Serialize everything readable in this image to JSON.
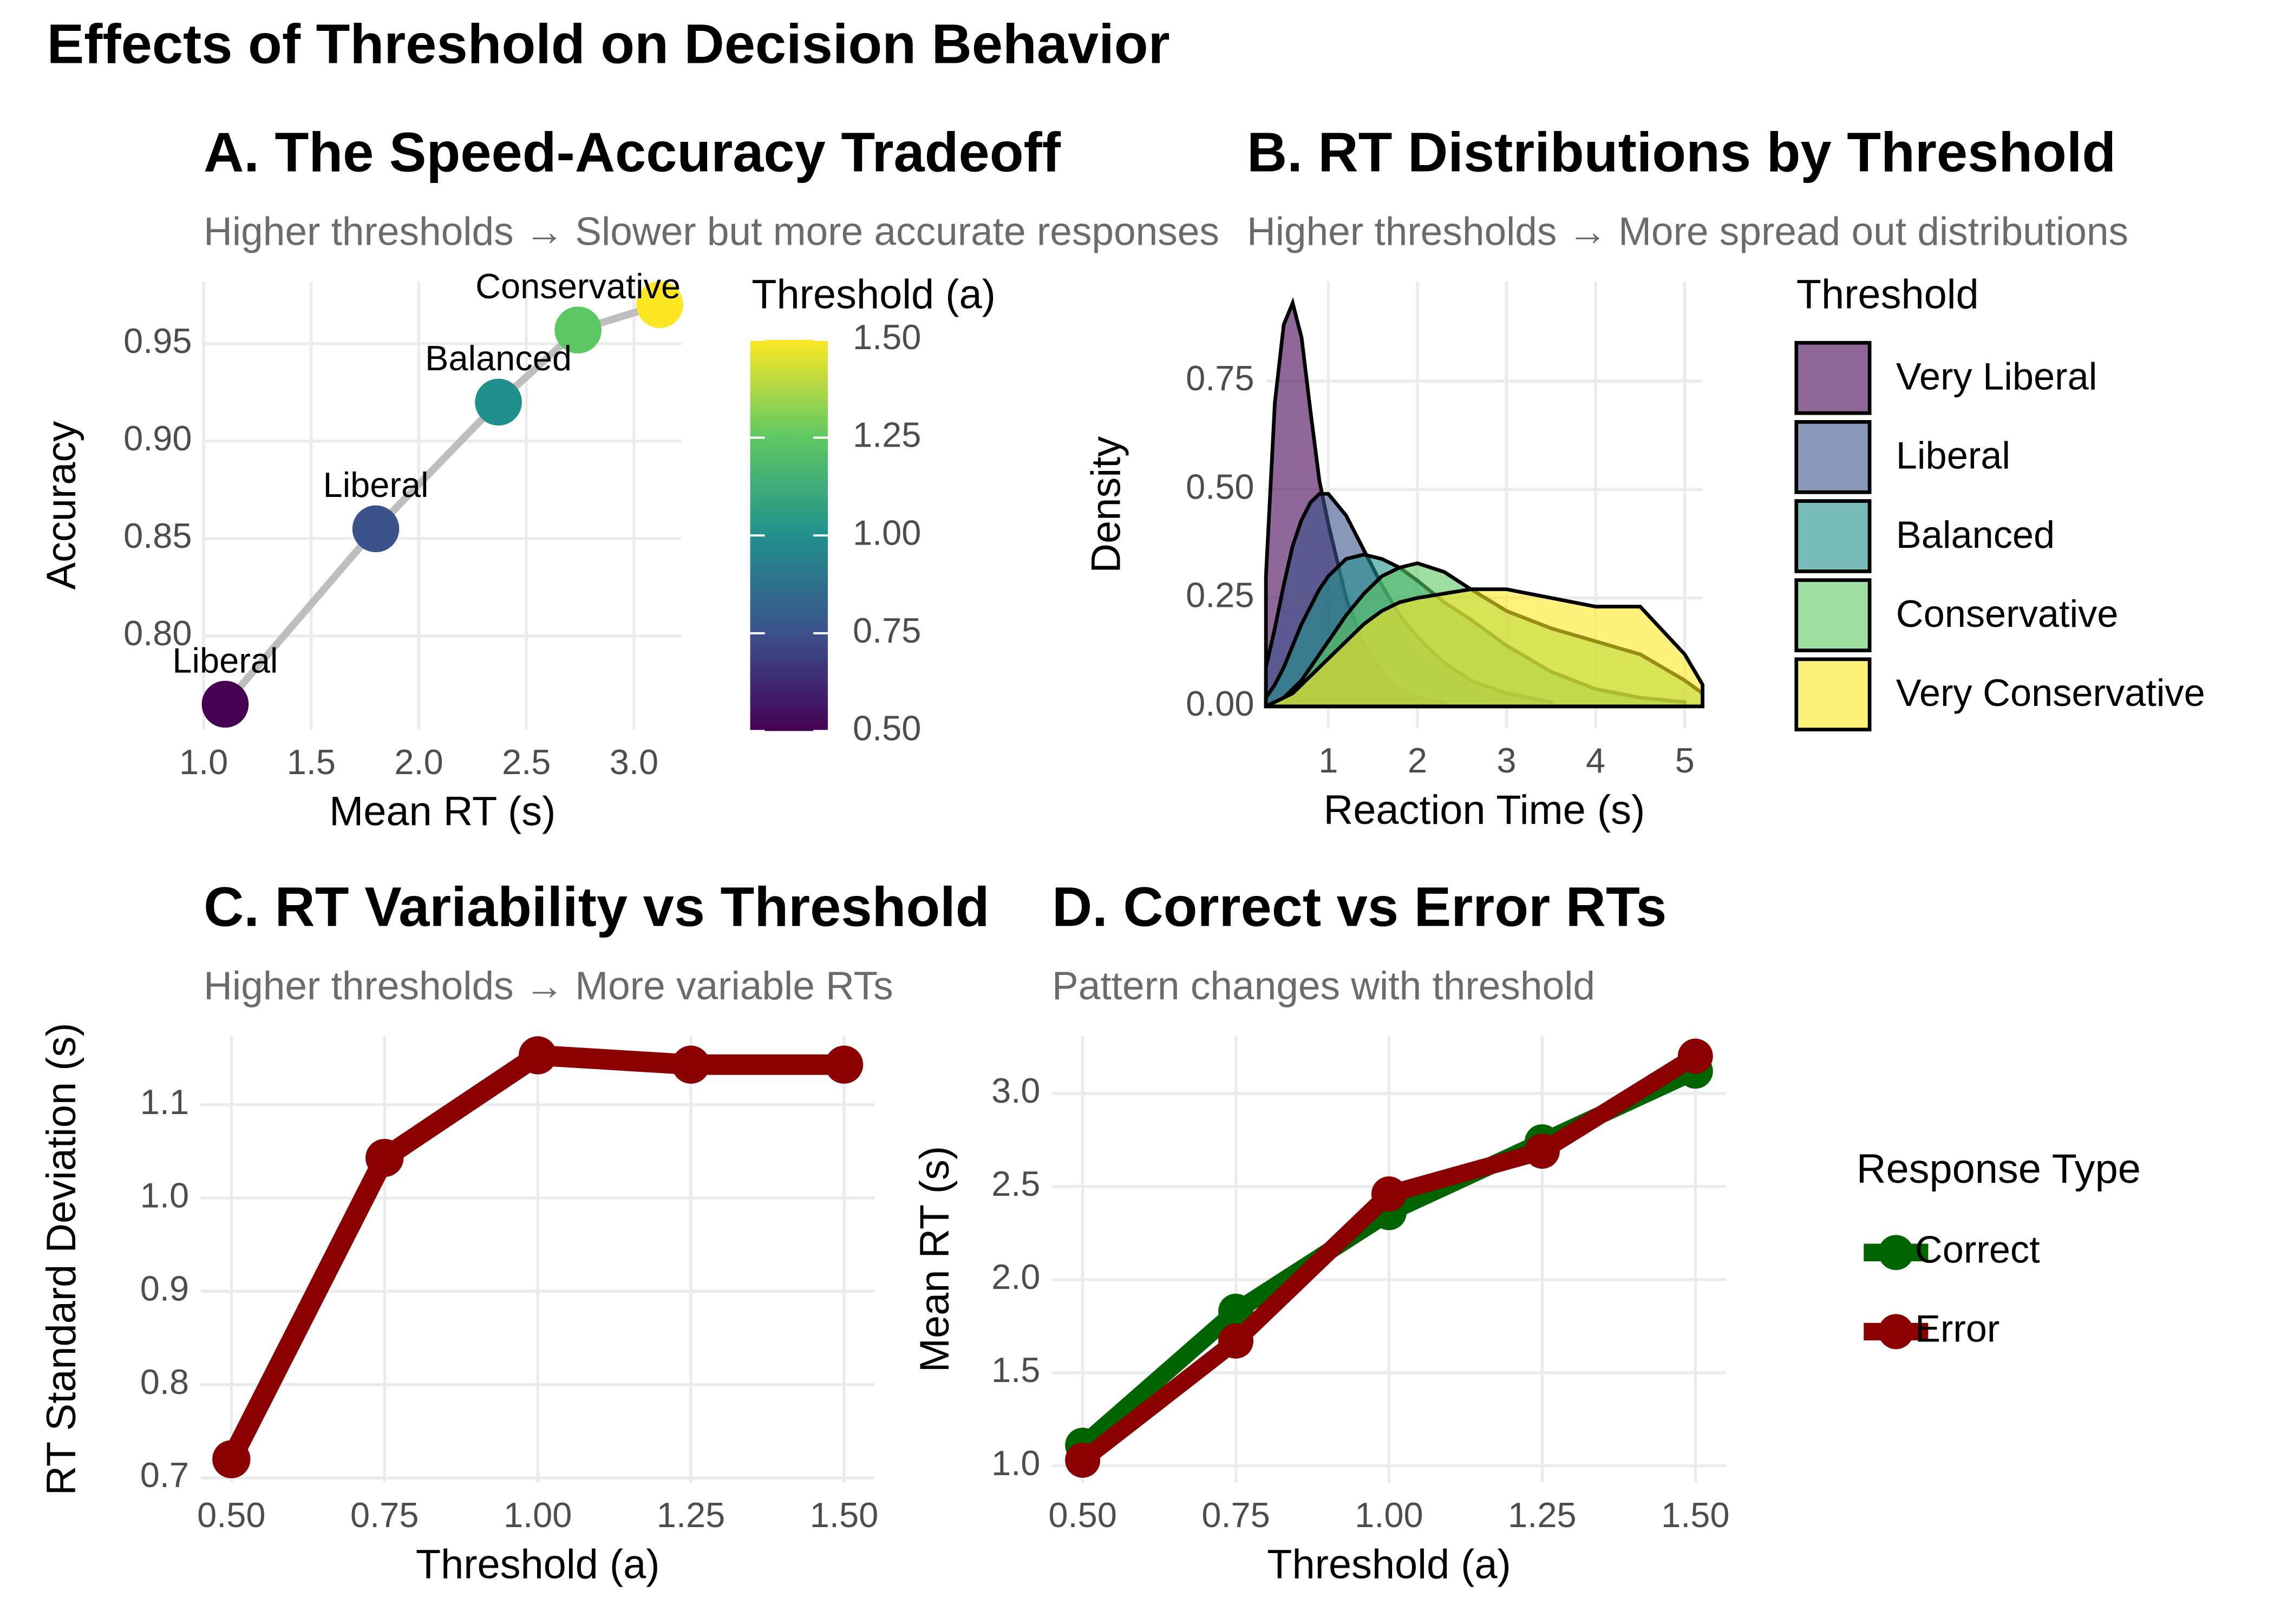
{
  "title": "Effects of Threshold on Decision Behavior",
  "chart_data": [
    {
      "type": "scatter",
      "title": "A. The Speed-Accuracy Tradeoff",
      "subtitle": "Higher thresholds → Slower but more accurate responses",
      "x_label": "Mean RT (s)",
      "y_label": "Accuracy",
      "x": [
        1.1,
        1.8,
        2.37,
        2.74,
        3.12
      ],
      "y": [
        0.765,
        0.855,
        0.92,
        0.957,
        0.97
      ],
      "labels": [
        "Liberal",
        "Liberal",
        "Balanced",
        "Conservative",
        null
      ],
      "color_values": [
        0.5,
        0.75,
        1,
        1.25,
        1.5
      ],
      "colors": [
        "#440154",
        "#3b528b",
        "#21908c",
        "#5dc863",
        "#fde725"
      ],
      "line_color": "#bebebe",
      "xlim": [
        1.0,
        3.22
      ],
      "ylim": [
        0.752,
        0.982
      ],
      "xticks": [
        {
          "value": 1,
          "label": "1.0"
        },
        1.5,
        {
          "value": 2,
          "label": "2.0"
        },
        2.5,
        {
          "value": 3,
          "label": "3.0"
        }
      ],
      "yticks": [
        {
          "value": 0.8,
          "label": "0.80"
        },
        0.85,
        {
          "value": 0.9,
          "label": "0.90"
        },
        0.95
      ],
      "grid": true,
      "colorbar": {
        "title": "Threshold (a)",
        "lim": [
          0.5,
          1.5
        ],
        "ticks": [
          {
            "value": 0.5,
            "label": "0.50"
          },
          0.75,
          {
            "value": 1,
            "label": "1.00"
          },
          1.25,
          {
            "value": 1.5,
            "label": "1.50"
          }
        ]
      }
    },
    {
      "type": "density",
      "title": "B. RT Distributions by Threshold",
      "subtitle": "Higher thresholds → More spread out distributions",
      "x_label": "Reaction Time (s)",
      "y_label": "Density",
      "legend_title": "Threshold",
      "x": [
        0.3,
        0.4,
        0.5,
        0.6,
        0.7,
        0.8,
        0.9,
        1.0,
        1.2,
        1.4,
        1.6,
        1.8,
        2.0,
        2.3,
        2.6,
        3.0,
        3.5,
        4.0,
        4.5,
        5.0,
        5.2
      ],
      "series": [
        {
          "name": "Very Liberal",
          "color": "#440154",
          "values": [
            0.3,
            0.7,
            0.88,
            0.93,
            0.85,
            0.68,
            0.52,
            0.42,
            0.25,
            0.14,
            0.08,
            0.04,
            0.02,
            0.01,
            null,
            null,
            null,
            null,
            null,
            null,
            null
          ]
        },
        {
          "name": "Liberal",
          "color": "#3b528b",
          "values": [
            0.09,
            0.18,
            0.28,
            0.37,
            0.43,
            0.47,
            0.49,
            0.49,
            0.44,
            0.36,
            0.28,
            0.21,
            0.16,
            0.1,
            0.06,
            0.03,
            0.01,
            null,
            null,
            null,
            null
          ]
        },
        {
          "name": "Balanced",
          "color": "#21908c",
          "values": [
            0.02,
            0.05,
            0.09,
            0.14,
            0.19,
            0.23,
            0.27,
            0.3,
            0.34,
            0.35,
            0.34,
            0.32,
            0.29,
            0.24,
            0.2,
            0.14,
            0.08,
            0.04,
            0.02,
            0.01,
            null
          ]
        },
        {
          "name": "Conservative",
          "color": "#5dc863",
          "values": [
            0,
            0.01,
            0.02,
            0.04,
            0.06,
            0.09,
            0.12,
            0.15,
            0.21,
            0.26,
            0.3,
            0.32,
            0.33,
            0.31,
            0.27,
            0.22,
            0.18,
            0.15,
            0.12,
            0.06,
            0.03
          ]
        },
        {
          "name": "Very Conservative",
          "color": "#fde725",
          "values": [
            0,
            0.01,
            0.02,
            0.03,
            0.05,
            0.07,
            0.09,
            0.11,
            0.15,
            0.19,
            0.22,
            0.24,
            0.25,
            0.26,
            0.27,
            0.27,
            0.25,
            0.23,
            0.23,
            0.12,
            0.05
          ]
        }
      ],
      "xlim": [
        0.3,
        5.2
      ],
      "ylim": [
        -0.05,
        0.98
      ],
      "xticks": [
        1,
        2,
        3,
        4,
        5
      ],
      "yticks": [
        {
          "value": 0,
          "label": "0.00"
        },
        0.25,
        {
          "value": 0.5,
          "label": "0.50"
        },
        0.75
      ],
      "grid": true
    },
    {
      "type": "line",
      "title": "C. RT Variability vs Threshold",
      "subtitle": "Higher thresholds → More variable RTs",
      "x_label": "Threshold (a)",
      "y_label": "RT Standard Deviation (s)",
      "x": [
        0.5,
        0.75,
        1,
        1.25,
        1.5
      ],
      "values": [
        0.72,
        1.043,
        1.153,
        1.143,
        1.143
      ],
      "color": "#8b0000",
      "xlim": [
        0.45,
        1.55
      ],
      "ylim": [
        0.695,
        1.174
      ],
      "xticks": [
        {
          "value": 0.5,
          "label": "0.50"
        },
        0.75,
        {
          "value": 1,
          "label": "1.00"
        },
        1.25,
        {
          "value": 1.5,
          "label": "1.50"
        }
      ],
      "yticks": [
        0.7,
        0.8,
        0.9,
        {
          "value": 1,
          "label": "1.0"
        },
        1.1
      ],
      "grid": true
    },
    {
      "type": "line",
      "title": "D. Correct vs Error RTs",
      "subtitle": "Pattern changes with threshold",
      "x_label": "Threshold (a)",
      "y_label": "Mean RT (s)",
      "legend_title": "Response Type",
      "x": [
        0.5,
        0.75,
        1,
        1.25,
        1.5
      ],
      "series": [
        {
          "name": "Correct",
          "color": "#006400",
          "values": [
            1.11,
            1.83,
            2.36,
            2.74,
            3.12
          ]
        },
        {
          "name": "Error",
          "color": "#8b0000",
          "values": [
            1.03,
            1.67,
            2.46,
            2.69,
            3.2
          ]
        }
      ],
      "xlim": [
        0.45,
        1.55
      ],
      "ylim": [
        0.91,
        3.31
      ],
      "xticks": [
        {
          "value": 0.5,
          "label": "0.50"
        },
        0.75,
        {
          "value": 1,
          "label": "1.00"
        },
        1.25,
        {
          "value": 1.5,
          "label": "1.50"
        }
      ],
      "yticks": [
        {
          "value": 1,
          "label": "1.0"
        },
        1.5,
        {
          "value": 2,
          "label": "2.0"
        },
        2.5,
        {
          "value": 3,
          "label": "3.0"
        }
      ],
      "grid": true
    }
  ]
}
